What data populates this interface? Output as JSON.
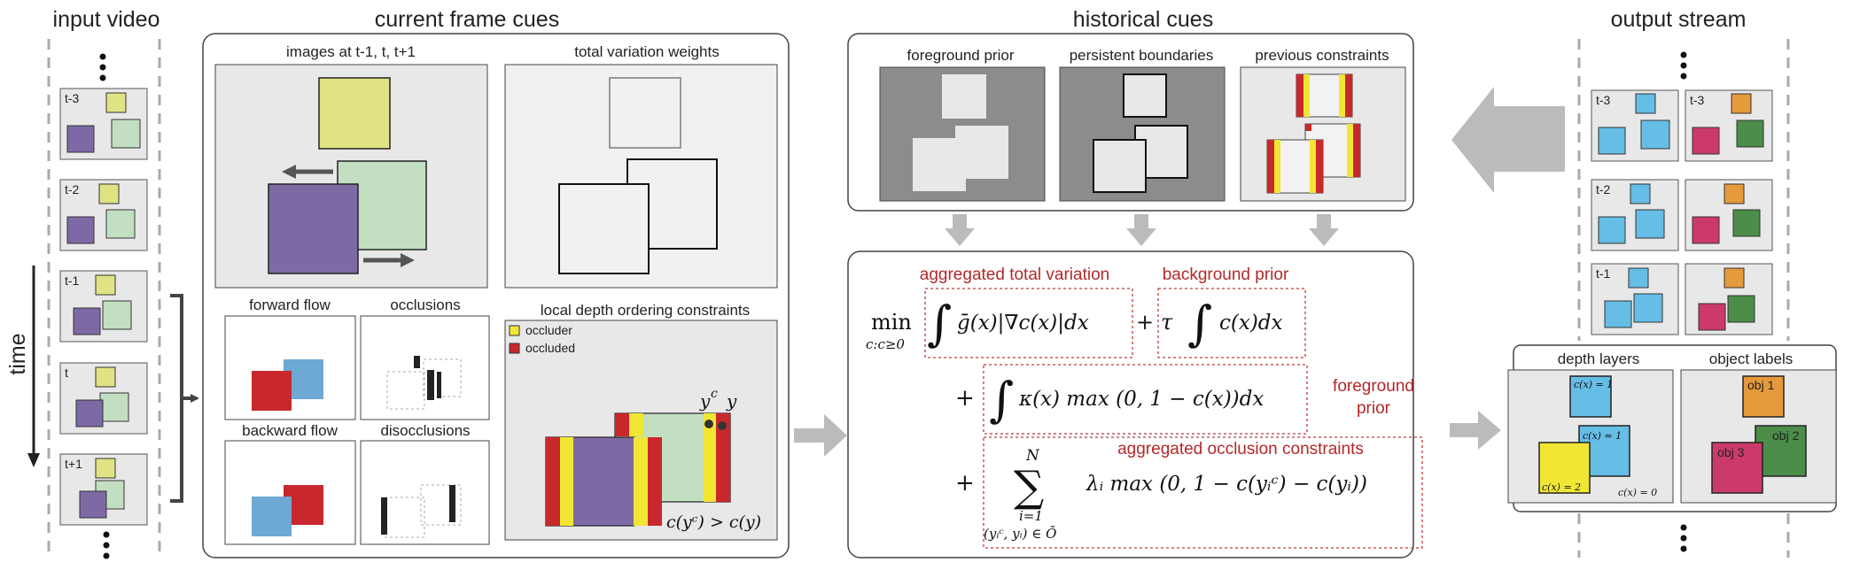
{
  "headers": {
    "input_video": "input video",
    "current_frame_cues": "current frame cues",
    "historical_cues": "historical cues",
    "output_stream": "output stream"
  },
  "input_video": {
    "time_label": "time",
    "frames": [
      "t-3",
      "t-2",
      "t-1",
      "t",
      "t+1"
    ]
  },
  "current_frame_cues": {
    "images_title": "images at t-1, t, t+1",
    "tv_title": "total variation weights",
    "forward_flow": "forward flow",
    "occlusions": "occlusions",
    "backward_flow": "backward flow",
    "disocclusions": "disocclusions",
    "ldoc_title": "local depth ordering constraints",
    "legend_occluder": "occluder",
    "legend_occluded": "occluded",
    "yc_label": "y",
    "yc_sup": "c",
    "y_label": "y",
    "constraint_formula": "c(yᶜ) > c(y)"
  },
  "historical_cues": {
    "foreground_prior": "foreground prior",
    "persistent_boundaries": "persistent boundaries",
    "previous_constraints": "previous constraints"
  },
  "energy": {
    "term_tv": "aggregated total variation",
    "term_bg": "background prior",
    "term_fg": "foreground",
    "term_fg2": "prior",
    "term_occ": "aggregated occlusion constraints",
    "min": "min",
    "min_sub": "c:c≥0",
    "integrand_tv": "ḡ(x)|∇c(x)|dx",
    "plus": "+",
    "tau": "τ",
    "integrand_bg": "c(x)dx",
    "integrand_fg": "κ(x) max (0, 1 − c(x))dx",
    "sum_top": "N",
    "sum_bottom1": "i=1",
    "sum_bottom2": "(yᵢᶜ, yᵢ) ∈ Ō",
    "integrand_occ": "λᵢ max (0, 1 − c(yᵢᶜ) − c(yᵢ))"
  },
  "output": {
    "frames": [
      "t-3",
      "t-2",
      "t-1"
    ],
    "depth_layers": "depth layers",
    "object_labels": "object labels",
    "c1a": "c(x) = 1",
    "c1b": "c(x) = 1",
    "c2": "c(x) = 2",
    "c0": "c(x) = 0",
    "obj1": "obj 1",
    "obj2": "obj 2",
    "obj3": "obj 3"
  },
  "colors": {
    "yellow": "#dfe383",
    "green": "#c3dfc2",
    "purple": "#7d6aa5",
    "blue": "#6ea8d5",
    "red": "#c8282c",
    "orange": "#e59a3c",
    "pink": "#cc3a6b",
    "darkgreen": "#4b8d49",
    "occluder": "#f2e634",
    "cyan": "#66bde6"
  }
}
